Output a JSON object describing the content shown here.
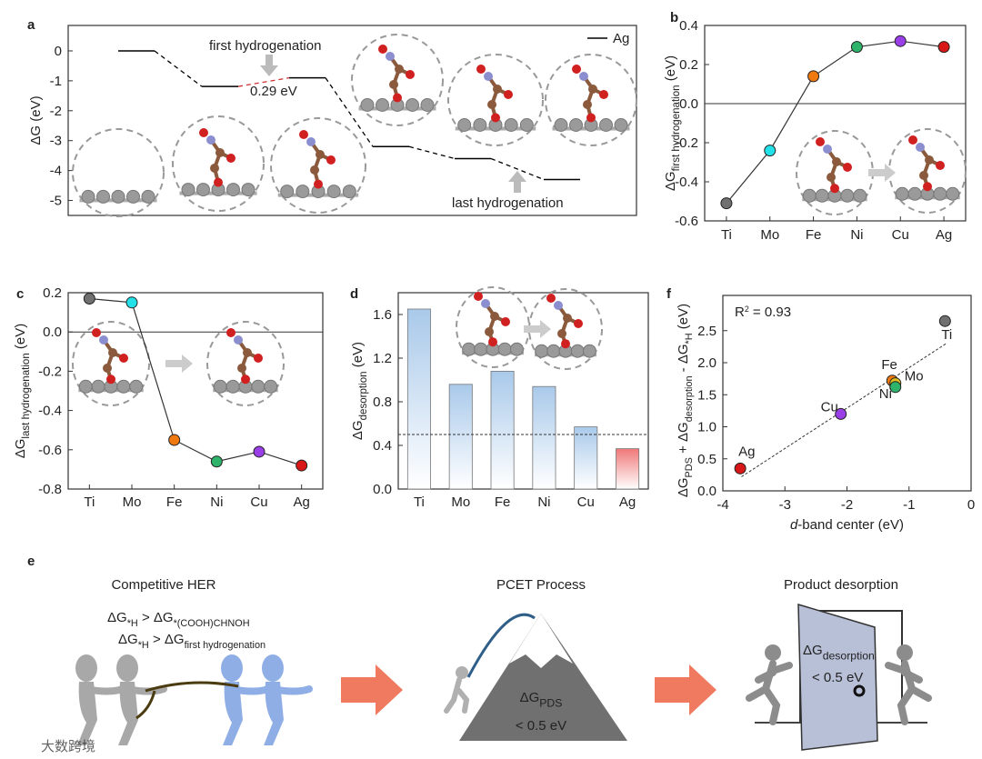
{
  "chart_data": [
    {
      "panel": "a",
      "type": "energy-profile",
      "ylabel": [
        "ΔG (eV)"
      ],
      "ylim": [
        -5.5,
        0.85
      ],
      "yticks": [
        0,
        -1,
        -2,
        -3,
        -4,
        -5
      ],
      "series": [
        {
          "name": "Ag",
          "color": "#000000",
          "values": [
            0,
            -1.19,
            -0.9,
            -3.2,
            -3.6,
            -4.3
          ]
        }
      ],
      "annotations": [
        "first hydrogenation",
        "0.29 eV",
        "last hydrogenation"
      ]
    },
    {
      "panel": "b",
      "type": "line",
      "ylabel": [
        "ΔG",
        "first hydrogenation",
        " (eV)"
      ],
      "categories": [
        "Ti",
        "Mo",
        "Fe",
        "Ni",
        "Cu",
        "Ag"
      ],
      "values": [
        -0.51,
        -0.24,
        0.14,
        0.29,
        0.32,
        0.29
      ],
      "colors": [
        "#707070",
        "#22e0e8",
        "#f07a10",
        "#2db36a",
        "#9a3ee8",
        "#d81818"
      ],
      "ylim": [
        -0.6,
        0.4
      ],
      "yticks": [
        -0.6,
        -0.4,
        -0.2,
        {
          "value": 0,
          "label": "0.0"
        },
        0.2,
        0.4
      ],
      "hline": 0
    },
    {
      "panel": "c",
      "type": "line",
      "ylabel": [
        "ΔG",
        "last hydrogenation",
        " (eV)"
      ],
      "categories": [
        "Ti",
        "Mo",
        "Fe",
        "Ni",
        "Cu",
        "Ag"
      ],
      "values": [
        0.17,
        0.15,
        -0.55,
        -0.66,
        -0.61,
        -0.68
      ],
      "colors": [
        "#707070",
        "#22e0e8",
        "#f07a10",
        "#2db36a",
        "#9a3ee8",
        "#d81818"
      ],
      "ylim": [
        -0.8,
        0.2
      ],
      "yticks": [
        -0.8,
        -0.6,
        -0.4,
        -0.2,
        {
          "value": 0,
          "label": "0.0"
        },
        0.2
      ],
      "hline": 0
    },
    {
      "panel": "d",
      "type": "bar",
      "ylabel": [
        "ΔG",
        "desorption",
        " (eV)"
      ],
      "categories": [
        "Ti",
        "Mo",
        "Fe",
        "Ni",
        "Cu",
        "Ag"
      ],
      "values": [
        1.65,
        0.96,
        1.08,
        0.94,
        0.57,
        0.37
      ],
      "colors": [
        "#a9c9ea",
        "#a9c9ea",
        "#a9c9ea",
        "#a9c9ea",
        "#a9c9ea",
        "#f07878"
      ],
      "ylim": [
        0,
        1.8
      ],
      "yticks": [
        {
          "value": 0,
          "label": "0.0"
        },
        0.4,
        0.8,
        1.2,
        1.6
      ],
      "hline": 0.5
    },
    {
      "panel": "f",
      "type": "scatter",
      "ylabel": [
        "ΔG",
        "PDS",
        " + ΔG",
        "desorption",
        " - ΔG",
        "*H",
        " (eV)"
      ],
      "xlabel": [
        "d",
        "-band center (eV)"
      ],
      "annotation": [
        "R",
        "2",
        " = 0.93"
      ],
      "labels": [
        "Ag",
        "Cu",
        "Fe",
        "Mo",
        "Ni",
        "Ti"
      ],
      "x": [
        -3.72,
        -2.1,
        -1.27,
        -1.22,
        -1.22,
        -0.42
      ],
      "values": [
        0.35,
        1.2,
        1.72,
        1.68,
        1.62,
        2.65
      ],
      "colors": [
        "#d81818",
        "#9a3ee8",
        "#f07a10",
        "#e0c020",
        "#2db36a",
        "#707070"
      ],
      "xlim": [
        -4,
        0
      ],
      "xticks": [
        -4,
        -3,
        -2,
        -1,
        0
      ],
      "ylim": [
        0,
        3.05
      ],
      "yticks": [
        {
          "value": 0,
          "label": "0.0"
        },
        0.5,
        {
          "value": 1,
          "label": "1.0"
        },
        1.5,
        {
          "value": 2,
          "label": "2.0"
        },
        2.5
      ],
      "fit_line": {
        "x": [
          -3.7,
          -0.4
        ],
        "y": [
          0.22,
          2.3
        ]
      }
    }
  ],
  "panel_e": {
    "panel": "e",
    "titles": [
      "Competitive HER",
      "PCET Process",
      "Product desorption"
    ],
    "her_line1": [
      "ΔG",
      "*H",
      " > ΔG",
      "*(COOH)CHNOH"
    ],
    "her_line2": [
      "ΔG",
      "*H",
      " > ΔG",
      "first hydrogenation"
    ],
    "pcet": [
      "ΔG",
      "PDS"
    ],
    "pcet_limit": "< 0.5 eV",
    "desorption": [
      "ΔG",
      "desorption"
    ],
    "desorption_limit": "< 0.5 eV"
  },
  "watermark": "大数跨境"
}
